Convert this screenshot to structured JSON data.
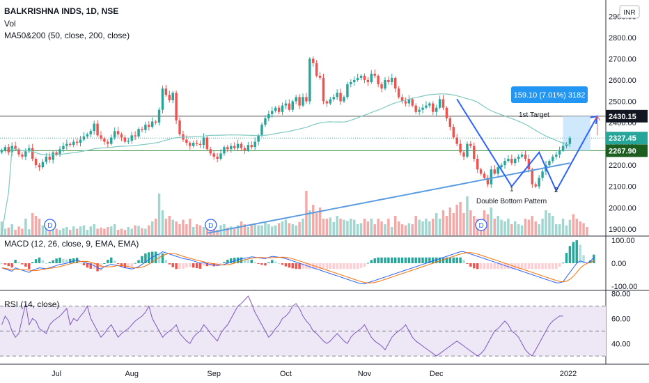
{
  "header": {
    "symbol_line": "BALKRISHNA INDS, 1D, NSE",
    "vol_label": "Vol",
    "ma_label": "MA50&200 (50, close, 200, close)",
    "currency": "INR"
  },
  "colors": {
    "up": "#26a69a",
    "down": "#ef5350",
    "ma50": "#7fc8c0",
    "ma200": "#5b9be0",
    "pattern": "#2962ff",
    "macd": "#2962ff",
    "signal": "#ff6d00",
    "rsi": "#7e57c2",
    "rsi_band": "#ede7f6"
  },
  "chart_data": [
    {
      "type": "candlestick",
      "pane": "price",
      "ylim": [
        1870,
        2950
      ],
      "yticks": [
        "1900.00",
        "2000.00",
        "2100.00",
        "2200.00",
        "2300.00",
        "2400.00",
        "2500.00",
        "2600.00",
        "2700.00",
        "2800.00",
        "2900.00"
      ],
      "x_labels": [
        "Jul",
        "Aug",
        "Sep",
        "Oct",
        "Nov",
        "Dec",
        "2022"
      ],
      "price_tags": [
        {
          "value": 2430.15,
          "text": "2430.15",
          "color": "#131722"
        },
        {
          "value": 2327.45,
          "text": "2327.45",
          "color": "#26a69a"
        },
        {
          "value": 2267.9,
          "text": "2267.90",
          "color": "#1b5e20"
        }
      ],
      "horizontal_lines": [
        {
          "value": 2430.15,
          "color": "#555555",
          "style": "solid"
        },
        {
          "value": 2327.45,
          "color": "#26a69a",
          "style": "dotted"
        },
        {
          "value": 2267.9,
          "color": "#388e3c",
          "style": "solid"
        }
      ],
      "closes": [
        2270,
        2285,
        2260,
        2290,
        2275,
        2250,
        2240,
        2265,
        2280,
        2230,
        2200,
        2190,
        2215,
        2240,
        2225,
        2260,
        2250,
        2275,
        2290,
        2300,
        2295,
        2310,
        2305,
        2320,
        2335,
        2345,
        2360,
        2395,
        2340,
        2325,
        2310,
        2300,
        2330,
        2360,
        2345,
        2330,
        2310,
        2315,
        2340,
        2335,
        2370,
        2365,
        2390,
        2380,
        2405,
        2400,
        2460,
        2560,
        2530,
        2505,
        2540,
        2410,
        2345,
        2320,
        2305,
        2290,
        2305,
        2300,
        2295,
        2330,
        2275,
        2255,
        2240,
        2230,
        2255,
        2285,
        2275,
        2290,
        2280,
        2300,
        2280,
        2270,
        2295,
        2285,
        2310,
        2340,
        2390,
        2420,
        2440,
        2455,
        2470,
        2450,
        2480,
        2490,
        2460,
        2500,
        2520,
        2480,
        2520,
        2500,
        2700,
        2680,
        2620,
        2610,
        2500,
        2490,
        2510,
        2520,
        2540,
        2500,
        2520,
        2580,
        2590,
        2600,
        2610,
        2620,
        2600,
        2590,
        2630,
        2620,
        2580,
        2560,
        2600,
        2590,
        2610,
        2560,
        2520,
        2500,
        2490,
        2510,
        2480,
        2450,
        2460,
        2470,
        2480,
        2490,
        2450,
        2470,
        2510,
        2470,
        2420,
        2380,
        2330,
        2300,
        2260,
        2240,
        2300,
        2290,
        2230,
        2180,
        2160,
        2140,
        2110,
        2180,
        2160,
        2190,
        2200,
        2220,
        2230,
        2210,
        2230,
        2240,
        2250,
        2230,
        2180,
        2110,
        2100,
        2140,
        2170,
        2200,
        2220,
        2240,
        2250,
        2270,
        2290,
        2300,
        2327.45
      ],
      "markers": [
        {
          "text": "1",
          "index": 149,
          "price": 2085
        },
        {
          "text": "2",
          "index": 162,
          "price": 2080
        }
      ],
      "annotations": {
        "pattern_label": "Double Bottom Pattern",
        "target_label": "1st Target",
        "measure_label": "159.10 (7.01%) 3182"
      },
      "pattern_points": [
        [
          133,
          2510
        ],
        [
          149,
          2100
        ],
        [
          157,
          2260
        ],
        [
          162,
          2080
        ],
        [
          174,
          2430
        ]
      ],
      "target_arrow": [
        [
          174,
          2340
        ],
        [
          178,
          2430
        ]
      ],
      "dividends": [
        8,
        55,
        134
      ],
      "volume_ratio": [
        0.25,
        0.12,
        0.14,
        0.2,
        0.1,
        0.16,
        0.12,
        0.3,
        0.11,
        0.4,
        0.35,
        0.3,
        0.18,
        0.2,
        0.2,
        0.15,
        0.12,
        0.1,
        0.13,
        0.15,
        0.1,
        0.16,
        0.12,
        0.16,
        0.18,
        0.1,
        0.16,
        0.2,
        0.12,
        0.14,
        0.12,
        0.15,
        0.16,
        0.2,
        0.1,
        0.12,
        0.1,
        0.15,
        0.12,
        0.18,
        0.17,
        0.13,
        0.12,
        0.18,
        0.25,
        0.3,
        0.75,
        0.45,
        0.3,
        0.35,
        0.28,
        0.25,
        0.2,
        0.28,
        0.2,
        0.3,
        0.15,
        0.2,
        0.18,
        0.15,
        0.2,
        0.18,
        0.12,
        0.1,
        0.18,
        0.2,
        0.14,
        0.16,
        0.12,
        0.18,
        0.25,
        0.2,
        0.15,
        0.18,
        0.2,
        0.18,
        0.18,
        0.25,
        0.2,
        0.16,
        0.18,
        0.22,
        0.25,
        0.28,
        0.22,
        0.2,
        0.18,
        0.24,
        0.3,
        0.8,
        0.45,
        0.55,
        0.4,
        0.5,
        0.3,
        0.3,
        0.32,
        0.24,
        0.35,
        0.3,
        0.28,
        0.26,
        0.3,
        0.28,
        0.2,
        0.22,
        0.3,
        0.25,
        0.3,
        0.2,
        0.3,
        0.25,
        0.2,
        0.3,
        0.15,
        0.35,
        0.25,
        0.2,
        0.18,
        0.22,
        0.2,
        0.35,
        0.28,
        0.25,
        0.3,
        0.25,
        0.3,
        0.4,
        0.3,
        0.45,
        0.35,
        0.5,
        0.4,
        0.55,
        0.6,
        0.4,
        0.7,
        0.45,
        0.35,
        0.3,
        0.25,
        0.45,
        0.38,
        0.5,
        0.3,
        0.35,
        0.28,
        0.25,
        0.3,
        0.2,
        0.25,
        0.2,
        0.18,
        0.3,
        0.28,
        0.35,
        0.25,
        0.2,
        0.3,
        0.45,
        0.4,
        0.35,
        0.2,
        0.2,
        0.3,
        0.18,
        0.28,
        0.38,
        0.3,
        0.25,
        0.22,
        0.15
      ]
    },
    {
      "type": "line",
      "pane": "macd",
      "title": "MACD (12, 26, close, 9, EMA, EMA)",
      "ylim": [
        -115,
        115
      ],
      "yticks": [
        "100.00",
        "0.00",
        "-100.00"
      ],
      "macd": [
        -20,
        -25,
        -30,
        -35,
        -20,
        -25,
        -30,
        -35,
        -40,
        -30,
        -25,
        -20,
        -22,
        -24,
        -20,
        -15,
        -10,
        -5,
        -3,
        0,
        5,
        10,
        15,
        8,
        5,
        0,
        -5,
        -10,
        -20,
        -25,
        -15,
        -10,
        -5,
        -8,
        -10,
        -15,
        -20,
        -22,
        -25,
        -20,
        -15,
        -5,
        5,
        15,
        25,
        35,
        40,
        50,
        45,
        40,
        35,
        30,
        25,
        20,
        18,
        15,
        10,
        5,
        0,
        2,
        -2,
        -5,
        -8,
        -10,
        -8,
        -5,
        0,
        5,
        10,
        15,
        20,
        22,
        24,
        28,
        26,
        24,
        22,
        20,
        25,
        30,
        28,
        26,
        24,
        20,
        15,
        10,
        5,
        0,
        -5,
        -10,
        -15,
        -20,
        -25,
        -30,
        -35,
        -40,
        -45,
        -50,
        -55,
        -60,
        -65,
        -70,
        -75,
        -80,
        -85,
        -88,
        -90,
        -85,
        -80,
        -75,
        -70,
        -65,
        -60,
        -55,
        -50,
        -45,
        -40,
        -35,
        -30,
        -25,
        -20,
        -15,
        -10,
        -5,
        0,
        5,
        10,
        15,
        20,
        25,
        30,
        35,
        40,
        45,
        50,
        50,
        45,
        40,
        35,
        30,
        25,
        20,
        15,
        10,
        5,
        0,
        -5,
        -10,
        -15,
        -20,
        -25,
        -30,
        -35,
        -40,
        -45,
        -50,
        -55,
        -60,
        -65,
        -70,
        -75,
        -80,
        -85,
        -85,
        -80,
        -60,
        -40,
        -20,
        0,
        10,
        5,
        0,
        10,
        25
      ],
      "signal_offset": 4
    },
    {
      "type": "line",
      "pane": "rsi",
      "title": "RSI (14, close)",
      "ylim": [
        24,
        82
      ],
      "yticks": [
        "80.00",
        "60.00",
        "40.00"
      ],
      "band": [
        30,
        70
      ],
      "mid": 50,
      "values": [
        55,
        62,
        58,
        50,
        45,
        48,
        60,
        72,
        55,
        60,
        58,
        52,
        50,
        48,
        55,
        58,
        60,
        62,
        65,
        68,
        55,
        60,
        58,
        62,
        65,
        70,
        60,
        55,
        50,
        45,
        48,
        52,
        55,
        50,
        45,
        48,
        50,
        52,
        55,
        58,
        60,
        62,
        65,
        70,
        60,
        55,
        50,
        45,
        48,
        50,
        52,
        55,
        48,
        45,
        42,
        40,
        45,
        48,
        50,
        55,
        52,
        48,
        45,
        42,
        48,
        52,
        55,
        60,
        65,
        70,
        72,
        75,
        78,
        72,
        65,
        60,
        55,
        50,
        45,
        48,
        52,
        55,
        60,
        62,
        65,
        70,
        72,
        68,
        62,
        58,
        55,
        50,
        48,
        45,
        42,
        40,
        42,
        45,
        48,
        45,
        42,
        40,
        45,
        48,
        50,
        52,
        55,
        50,
        45,
        42,
        40,
        38,
        35,
        40,
        45,
        48,
        50,
        52,
        55,
        50,
        45,
        42,
        40,
        38,
        36,
        34,
        32,
        30,
        32,
        34,
        36,
        38,
        40,
        42,
        40,
        38,
        36,
        34,
        32,
        30,
        32,
        35,
        40,
        45,
        50,
        52,
        55,
        58,
        55,
        50,
        48,
        45,
        40,
        35,
        32,
        30,
        35,
        40,
        45,
        50,
        55,
        58,
        60,
        62,
        62
      ]
    }
  ]
}
